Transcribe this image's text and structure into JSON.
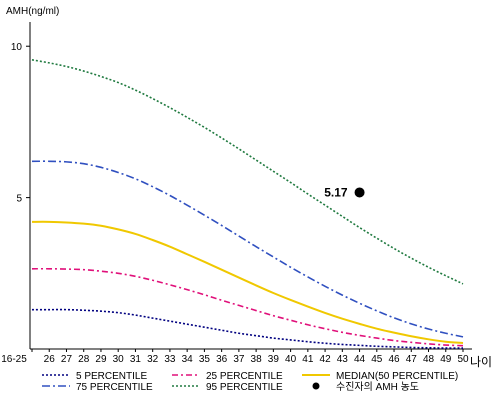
{
  "chart_data": {
    "type": "line",
    "ylabel": "AMH(ng/ml)",
    "xlabel": "나이",
    "yticks": [
      5,
      10
    ],
    "ylim": [
      0,
      10.8
    ],
    "grid": false,
    "x": [
      "16-25",
      "26",
      "27",
      "28",
      "29",
      "30",
      "31",
      "32",
      "33",
      "34",
      "35",
      "36",
      "37",
      "38",
      "39",
      "40",
      "41",
      "42",
      "43",
      "44",
      "45",
      "46",
      "47",
      "48",
      "49",
      "50"
    ],
    "series": [
      {
        "name": "5 PERCENTILE",
        "color": "#000080",
        "dash": "2,2",
        "values": [
          1.3,
          1.3,
          1.3,
          1.28,
          1.25,
          1.2,
          1.12,
          1.02,
          0.92,
          0.82,
          0.72,
          0.62,
          0.52,
          0.44,
          0.36,
          0.3,
          0.24,
          0.19,
          0.15,
          0.12,
          0.09,
          0.07,
          0.05,
          0.04,
          0.03,
          0.03
        ]
      },
      {
        "name": "25 PERCENTILE",
        "color": "#e0107a",
        "dash": "6,3,2,3",
        "values": [
          2.65,
          2.65,
          2.64,
          2.62,
          2.57,
          2.5,
          2.4,
          2.27,
          2.12,
          1.96,
          1.79,
          1.61,
          1.44,
          1.27,
          1.1,
          0.95,
          0.8,
          0.67,
          0.55,
          0.45,
          0.36,
          0.28,
          0.22,
          0.17,
          0.13,
          0.11
        ]
      },
      {
        "name": "MEDIAN(50 PERCENTILE)",
        "color": "#f0c800",
        "dash": "",
        "values": [
          4.2,
          4.2,
          4.18,
          4.14,
          4.07,
          3.95,
          3.8,
          3.6,
          3.38,
          3.13,
          2.88,
          2.62,
          2.36,
          2.1,
          1.85,
          1.62,
          1.4,
          1.19,
          1.0,
          0.83,
          0.67,
          0.54,
          0.42,
          0.32,
          0.24,
          0.2
        ]
      },
      {
        "name": "75 PERCENTILE",
        "color": "#3050c0",
        "dash": "8,3,2,3",
        "values": [
          6.2,
          6.2,
          6.18,
          6.12,
          6.0,
          5.83,
          5.62,
          5.36,
          5.07,
          4.75,
          4.42,
          4.08,
          3.73,
          3.38,
          3.04,
          2.7,
          2.38,
          2.07,
          1.78,
          1.51,
          1.26,
          1.03,
          0.83,
          0.66,
          0.52,
          0.4
        ]
      },
      {
        "name": "95 PERCENTILE",
        "color": "#207a40",
        "dash": "2,2",
        "values": [
          9.55,
          9.45,
          9.33,
          9.18,
          9.0,
          8.8,
          8.55,
          8.27,
          7.97,
          7.65,
          7.32,
          6.97,
          6.61,
          6.24,
          5.87,
          5.5,
          5.12,
          4.75,
          4.38,
          4.01,
          3.66,
          3.32,
          3.0,
          2.7,
          2.42,
          2.15
        ]
      }
    ],
    "points": [
      {
        "name": "수진자의 AMH 농도",
        "x": "44",
        "y": 5.17,
        "label": "5.17",
        "color": "#000000"
      }
    ],
    "legend": {
      "placement": "bottom",
      "entries": [
        {
          "label": "5 PERCENTILE",
          "color": "#000080",
          "dash": "2,2",
          "kind": "line"
        },
        {
          "label": "25 PERCENTILE",
          "color": "#e0107a",
          "dash": "6,3,2,3",
          "kind": "line"
        },
        {
          "label": "MEDIAN(50 PERCENTILE)",
          "color": "#f0c800",
          "dash": "",
          "kind": "line"
        },
        {
          "label": "75 PERCENTILE",
          "color": "#3050c0",
          "dash": "8,3,2,3",
          "kind": "line"
        },
        {
          "label": "95 PERCENTILE",
          "color": "#207a40",
          "dash": "2,2",
          "kind": "line"
        },
        {
          "label": "수진자의 AMH 농도",
          "color": "#000000",
          "dash": "",
          "kind": "dot"
        }
      ]
    }
  }
}
